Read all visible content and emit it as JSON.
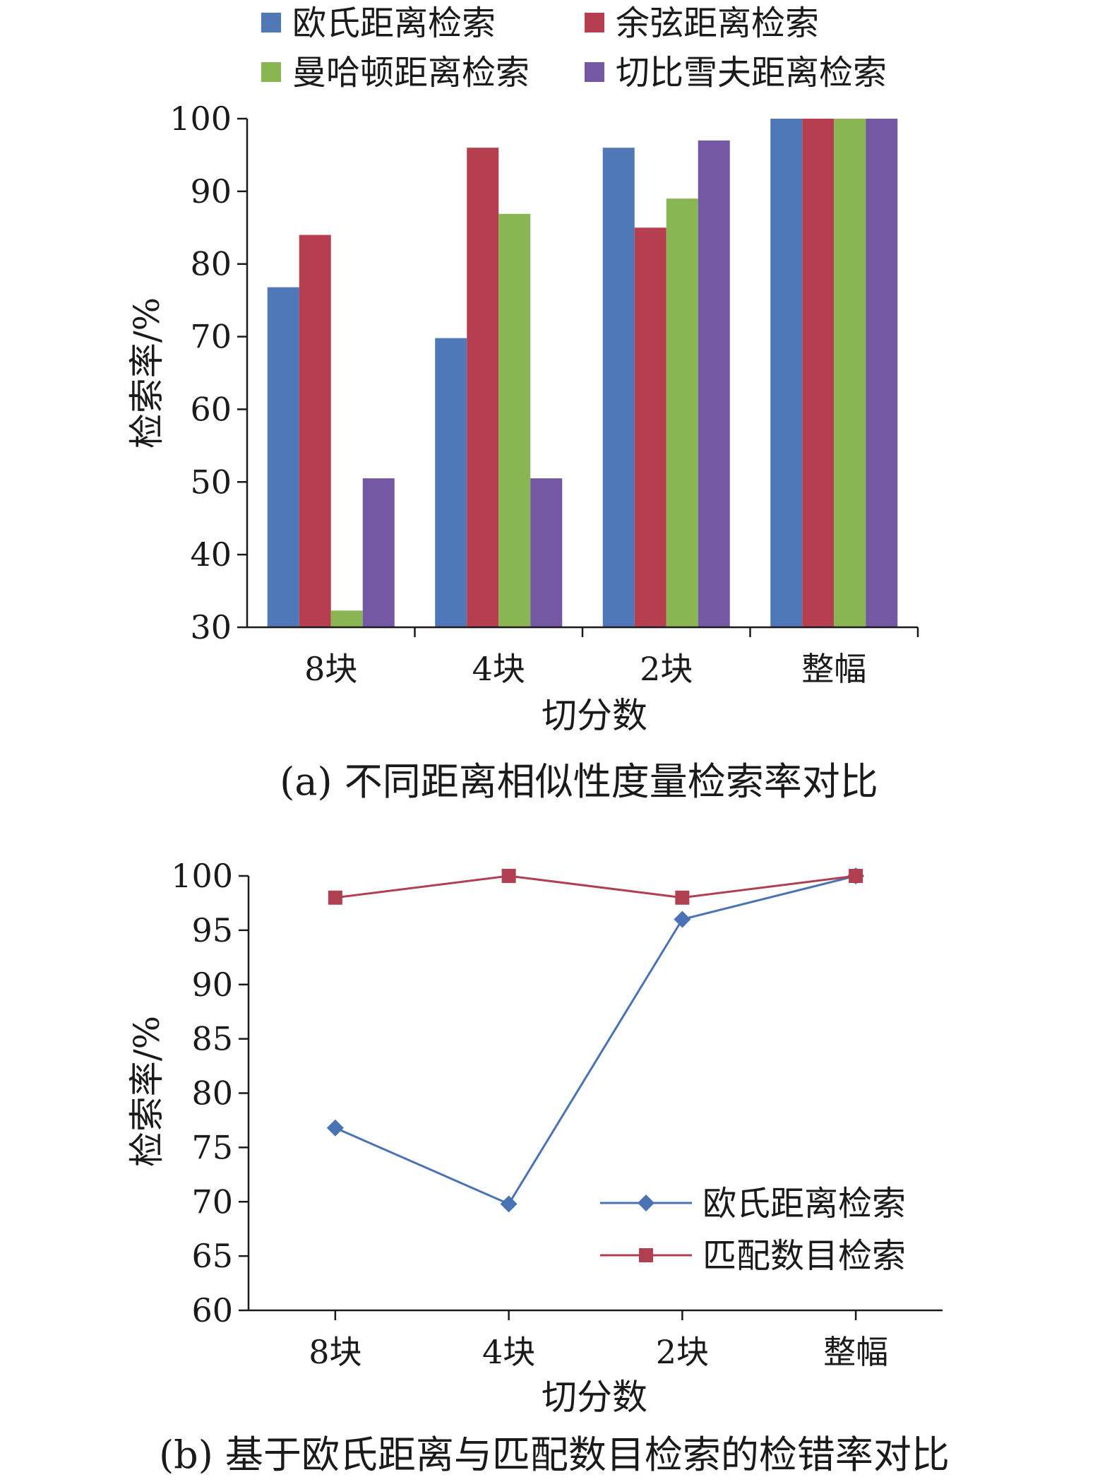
{
  "chart_data": [
    {
      "type": "bar",
      "categories": [
        "8块",
        "4块",
        "2块",
        "整幅"
      ],
      "series": [
        {
          "name": "欧氏距离检索",
          "values": [
            76.8,
            69.8,
            96,
            100
          ],
          "color": "#4f78b8"
        },
        {
          "name": "余弦距离检索",
          "values": [
            84,
            96,
            85,
            100
          ],
          "color": "#b53f4f"
        },
        {
          "name": "曼哈顿距离检索",
          "values": [
            32.3,
            86.9,
            89,
            100
          ],
          "color": "#8ab553"
        },
        {
          "name": "切比雪夫距离检索",
          "values": [
            50.5,
            50.5,
            97,
            100
          ],
          "color": "#7558a3"
        }
      ],
      "xlabel": "切分数",
      "ylabel": "检索率/%",
      "ylim": [
        30,
        100
      ],
      "yticks": [
        30,
        40,
        50,
        60,
        70,
        80,
        90,
        100
      ],
      "legend_position": "top",
      "caption": "(a) 不同距离相似性度量检索率对比"
    },
    {
      "type": "line",
      "categories": [
        "8块",
        "4块",
        "2块",
        "整幅"
      ],
      "series": [
        {
          "name": "欧氏距离检索",
          "values": [
            76.8,
            69.8,
            96,
            100
          ],
          "color": "#4a73b5",
          "marker": "diamond"
        },
        {
          "name": "匹配数目检索",
          "values": [
            98,
            100,
            98,
            100
          ],
          "color": "#b04050",
          "marker": "square"
        }
      ],
      "xlabel": "切分数",
      "ylabel": "检索率/%",
      "ylim": [
        60,
        100
      ],
      "yticks": [
        60,
        65,
        70,
        75,
        80,
        85,
        90,
        95,
        100
      ],
      "legend_position": "bottom-right",
      "caption": "(b) 基于欧氏距离与匹配数目检索的检错率对比"
    }
  ]
}
